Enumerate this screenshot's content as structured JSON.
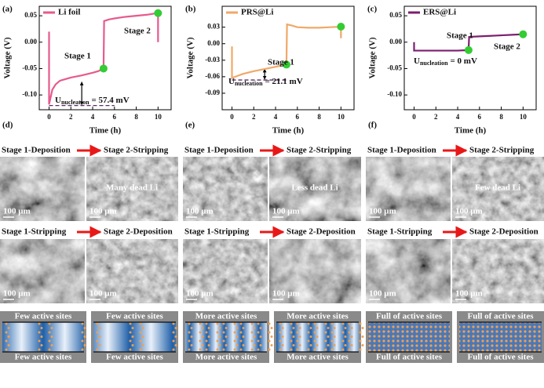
{
  "chart_data": [
    {
      "type": "line",
      "label": "(a)",
      "xlabel": "Time (h)",
      "ylabel": "Voltage (V)",
      "xlim": [
        -0.9,
        11.2
      ],
      "xticks": [
        0,
        2,
        4,
        6,
        8,
        10
      ],
      "ylim": [
        -0.128,
        0.068
      ],
      "yticks": [
        0.05,
        {
          "value": 0,
          "label": "0.00"
        },
        -0.05,
        {
          "value": -0.1,
          "label": "-0.10"
        }
      ],
      "series": [
        {
          "name": "Li foil",
          "color": "#e75a8d",
          "x": [
            0,
            0,
            0.3,
            0.6,
            1,
            1.5,
            2,
            3,
            4,
            4.5,
            5,
            5.05,
            5.5,
            6,
            7,
            8,
            9,
            9.9,
            10,
            10
          ],
          "values": [
            0.02,
            -0.118,
            -0.09,
            -0.08,
            -0.073,
            -0.07,
            -0.067,
            -0.063,
            -0.058,
            -0.055,
            -0.05,
            0.04,
            0.043,
            0.045,
            0.048,
            0.05,
            0.052,
            0.055,
            0.055,
            0.0
          ]
        }
      ],
      "highlights": {
        "color": "#33cc33",
        "x": [
          5,
          10
        ],
        "values": [
          -0.05,
          0.055
        ]
      },
      "guide": {
        "value": -0.12,
        "x": [
          0,
          6
        ]
      },
      "annotations": [
        {
          "text": "Stage 1"
        },
        {
          "text": "Stage 2"
        }
      ],
      "nucleation": {
        "symbol": "U",
        "subscript": "nucleation",
        "text": "= 57.4 mV"
      }
    },
    {
      "type": "line",
      "label": "(b)",
      "xlabel": "Time (h)",
      "ylabel": "Voltage (V)",
      "xlim": [
        -0.9,
        11.2
      ],
      "xticks": [
        0,
        2,
        4,
        6,
        8,
        10
      ],
      "ylim": [
        -0.12,
        0.068
      ],
      "yticks": [
        0.03,
        {
          "value": 0,
          "label": "0.00"
        },
        -0.03,
        -0.06,
        -0.09
      ],
      "series": [
        {
          "name": "PRS@Li",
          "color": "#f0a868",
          "x": [
            0,
            0,
            0.3,
            1,
            2,
            3,
            4,
            5,
            5.05,
            5.5,
            6,
            7,
            8,
            9,
            10,
            10
          ],
          "values": [
            -0.005,
            -0.062,
            -0.06,
            -0.055,
            -0.05,
            -0.046,
            -0.042,
            -0.038,
            0.035,
            0.033,
            0.03,
            0.029,
            0.029,
            0.03,
            0.031,
            0.01
          ]
        }
      ],
      "highlights": {
        "color": "#33cc33",
        "x": [
          5,
          10
        ],
        "values": [
          -0.038,
          0.031
        ]
      },
      "guide": {
        "value": -0.066,
        "x": [
          0,
          5
        ]
      },
      "annotations": [
        {
          "text": "Stage 1"
        }
      ],
      "nucleation": {
        "symbol": "U",
        "subscript": "nucleation",
        "text": "= 21.1 mV"
      }
    },
    {
      "type": "line",
      "label": "(c)",
      "xlabel": "Time (h)",
      "ylabel": "Voltage (V)",
      "xlim": [
        -0.9,
        11.2
      ],
      "xticks": [
        0,
        2,
        4,
        6,
        8,
        10
      ],
      "ylim": [
        -0.128,
        0.068
      ],
      "yticks": [
        0.05,
        {
          "value": 0,
          "label": "0.00"
        },
        -0.05,
        {
          "value": -0.1,
          "label": "-0.10"
        }
      ],
      "series": [
        {
          "name": "ERS@Li",
          "color": "#7b1f6e",
          "x": [
            0,
            0,
            0.2,
            1,
            2,
            3,
            4,
            5,
            5.05,
            6,
            7,
            8,
            9,
            10
          ],
          "values": [
            0.0,
            -0.016,
            -0.016,
            -0.016,
            -0.016,
            -0.016,
            -0.016,
            -0.015,
            0.01,
            0.011,
            0.012,
            0.013,
            0.014,
            0.015
          ]
        }
      ],
      "highlights": {
        "color": "#33cc33",
        "x": [
          5,
          10
        ],
        "values": [
          -0.015,
          0.015
        ]
      },
      "annotations": [
        {
          "text": "Stage 1"
        },
        {
          "text": "Stage 2"
        }
      ],
      "nucleation": {
        "symbol": "U",
        "subscript": "nucleation",
        "text": "= 0 mV"
      }
    }
  ],
  "panels": [
    {
      "label": "(d)",
      "row1": {
        "left": "Stage 1-Deposition",
        "right": "Stage 2-Stripping"
      },
      "dead_li": "Many dead Li",
      "row2": {
        "left": "Stage 1-Stripping",
        "right": "Stage 2-Deposition"
      },
      "scale_bar": "100 μm",
      "sites": [
        "Few active sites",
        "Few active sites",
        "Few active sites",
        "Few active sites"
      ]
    },
    {
      "label": "(e)",
      "row1": {
        "left": "Stage 1-Deposition",
        "right": "Stage 2-Stripping"
      },
      "dead_li": "Less dead Li",
      "row2": {
        "left": "Stage 1-Stripping",
        "right": "Stage 2-Deposition"
      },
      "scale_bar": "100 μm",
      "sites": [
        "More active sites",
        "More active sites",
        "More active sites",
        "More active sites"
      ]
    },
    {
      "label": "(f)",
      "row1": {
        "left": "Stage 1-Deposition",
        "right": "Stage 2-Stripping"
      },
      "dead_li": "Few dead Li",
      "row2": {
        "left": "Stage 1-Stripping",
        "right": "Stage 2-Deposition"
      },
      "scale_bar": "100 μm",
      "sites": [
        "Full of active sites",
        "Full of active sites",
        "Full of active sites",
        "Full of active sites"
      ]
    }
  ]
}
